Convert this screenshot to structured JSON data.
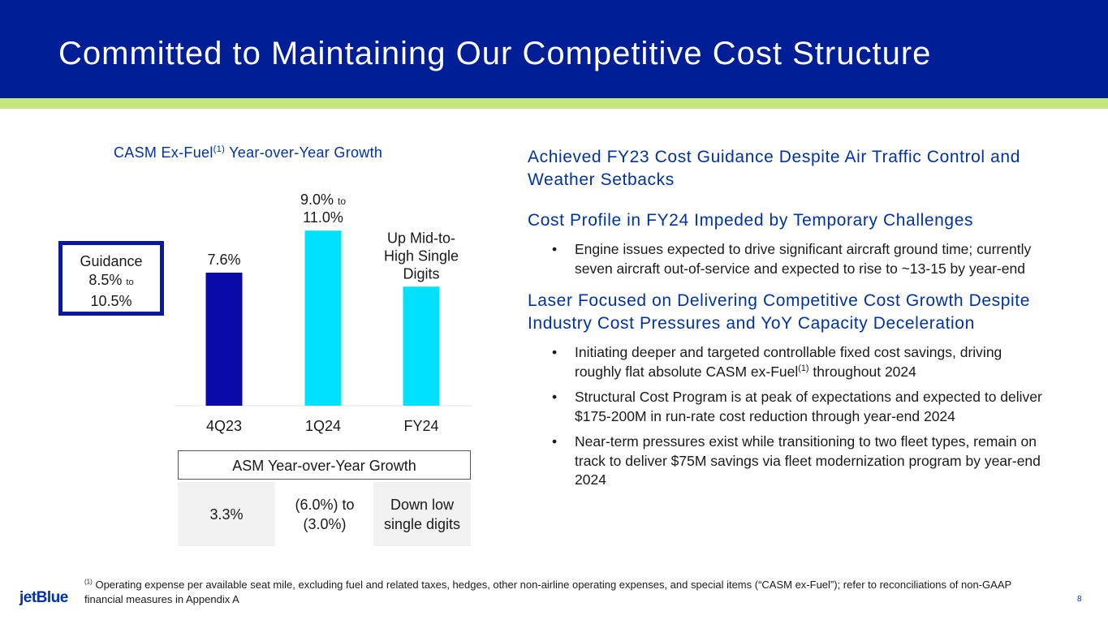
{
  "slide": {
    "title": "Committed to Maintaining Our Competitive Cost Structure",
    "page_number": "8",
    "logo_text": "jetBlue"
  },
  "colors": {
    "header": "#001e96",
    "accent_stripe": "#c5e67f",
    "bar_dark": "#0a0aa8",
    "bar_light": "#00e0ff",
    "heading_text": "#0033a0"
  },
  "chart_data": {
    "type": "bar",
    "title_main": "CASM Ex-Fuel",
    "title_sup": "(1)",
    "title_rest": " Year-over-Year Growth",
    "categories": [
      "4Q23",
      "1Q24",
      "FY24"
    ],
    "values": [
      7.6,
      10.0,
      6.8
    ],
    "bar_colors": [
      "#0a0aa8",
      "#00e0ff",
      "#00e0ff"
    ],
    "ylim": [
      0,
      12
    ],
    "bar_label_lines": [
      [
        "7.6%"
      ],
      [
        "9.0% to",
        "11.0%"
      ],
      [
        "Up Mid-to-",
        "High Single",
        "Digits"
      ]
    ],
    "guidance": {
      "line1": "Guidance",
      "line2_value": "8.5%",
      "line2_small": "to",
      "line3": "10.5%"
    }
  },
  "asm_table": {
    "header": "ASM Year-over-Year Growth",
    "cells": [
      "3.3%",
      "(6.0%) to (3.0%)",
      "Down low single digits"
    ]
  },
  "right": {
    "heading1": "Achieved FY23 Cost Guidance Despite Air Traffic Control and Weather Setbacks",
    "heading2": "Cost Profile in FY24 Impeded by Temporary Challenges",
    "bullets2": [
      "Engine issues expected to drive significant aircraft ground time; currently seven aircraft out-of-service and expected to rise to ~13-15 by year-end"
    ],
    "heading3": "Laser Focused on Delivering Competitive Cost Growth Despite Industry Cost Pressures and YoY Capacity Deceleration",
    "bullet3_1_start": "Initiating deeper and targeted controllable fixed cost savings, driving roughly flat absolute CASM ex-Fuel",
    "bullet3_1_sup": "(1)",
    "bullet3_1_end": " throughout 2024",
    "bullet3_2": "Structural Cost Program is at peak of expectations and expected to deliver $175-200M in run-rate cost reduction through year-end 2024",
    "bullet3_3": "Near-term pressures exist while transitioning to two fleet types, remain on track to deliver $75M savings via fleet modernization program by year-end 2024"
  },
  "footnote": {
    "marker": "(1)",
    "text": " Operating expense per available seat mile, excluding fuel and related taxes, hedges, other non-airline operating expenses, and special items (“CASM ex-Fuel”); refer to reconciliations of non-GAAP financial measures in Appendix A"
  }
}
